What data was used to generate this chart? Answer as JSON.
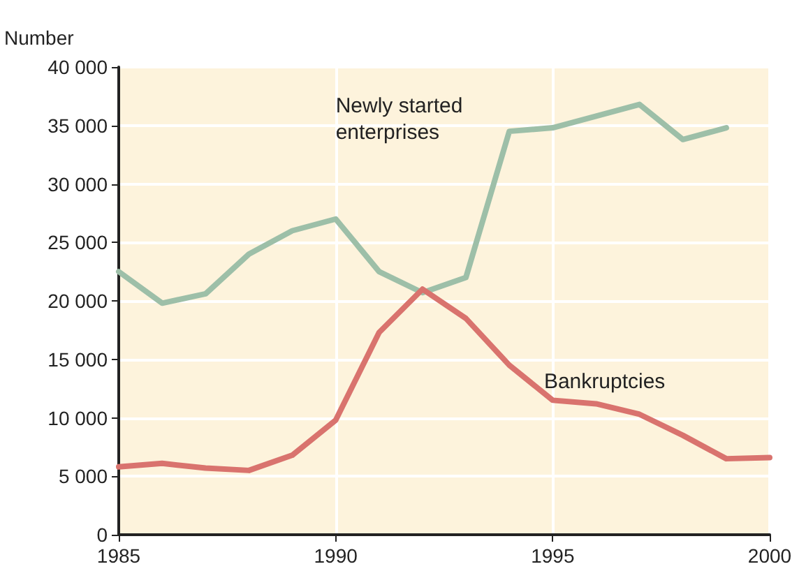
{
  "chart_data": {
    "type": "line",
    "ylabel": "Number",
    "x": [
      1985,
      1986,
      1987,
      1988,
      1989,
      1990,
      1991,
      1992,
      1993,
      1994,
      1995,
      1996,
      1997,
      1998,
      1999,
      2000
    ],
    "series": [
      {
        "name": "Newly started enterprises",
        "color": "#9dbfa8",
        "values": [
          22500,
          19800,
          20600,
          24000,
          26000,
          27000,
          22500,
          20700,
          22000,
          34500,
          34800,
          35800,
          36800,
          33800,
          34800,
          null
        ]
      },
      {
        "name": "Bankruptcies",
        "color": "#d9736e",
        "values": [
          5800,
          6100,
          5700,
          5500,
          6800,
          9800,
          17300,
          21000,
          18500,
          14500,
          11500,
          11200,
          10300,
          8500,
          6500,
          6600
        ]
      }
    ],
    "xlim": [
      1985,
      2000
    ],
    "xticks": [
      1985,
      1990,
      1995,
      2000
    ],
    "ylim": [
      0,
      40000
    ],
    "yticks": [
      0,
      {
        "value": 5000,
        "label": "5 000"
      },
      {
        "value": 10000,
        "label": "10 000"
      },
      {
        "value": 15000,
        "label": "15 000"
      },
      {
        "value": 20000,
        "label": "20 000"
      },
      {
        "value": 25000,
        "label": "25 000"
      },
      {
        "value": 30000,
        "label": "30 000"
      },
      {
        "value": 35000,
        "label": "35 000"
      },
      {
        "value": 40000,
        "label": "40 000"
      }
    ],
    "grid": true,
    "legend": false,
    "marker": "none",
    "line_style": "solid"
  }
}
